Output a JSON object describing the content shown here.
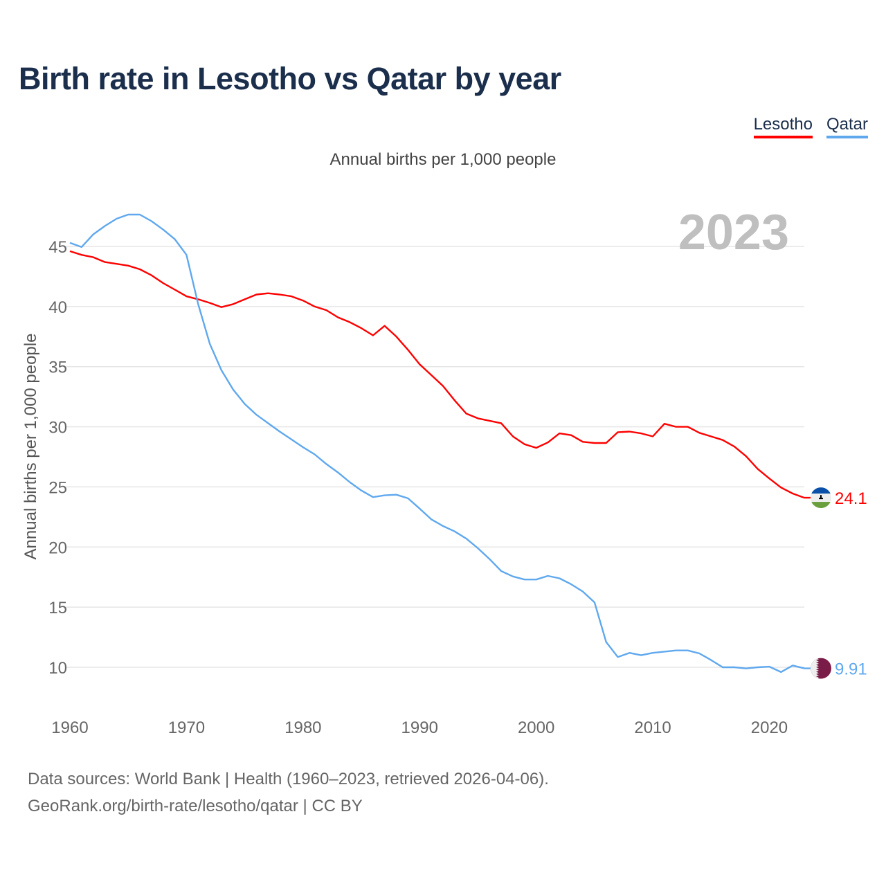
{
  "title": "Birth rate in Lesotho vs Qatar by year",
  "subtitle": "Annual births per 1,000 people",
  "footer": {
    "line1": "Data sources: World Bank | Health (1960–2023, retrieved 2026-04-06).",
    "line2": "GeoRank.org/birth-rate/lesotho/qatar | CC BY"
  },
  "chart_data": {
    "type": "line",
    "title": "Birth rate in Lesotho vs Qatar by year",
    "ylabel": "Annual births per 1,000 people",
    "xlabel": "",
    "year_label": "2023",
    "xlim": [
      1960,
      2023
    ],
    "ylim": [
      6.5,
      49
    ],
    "x_ticks": [
      1960,
      1970,
      1980,
      1990,
      2000,
      2010,
      2020
    ],
    "y_ticks": [
      10,
      15,
      20,
      25,
      30,
      35,
      40,
      45
    ],
    "grid": true,
    "legend_position": "top-right",
    "x_start": 1960,
    "series": [
      {
        "name": "Lesotho",
        "color": "#ff0000",
        "end_label": "24.1",
        "flag": "lesotho-flag",
        "values": [
          44.6,
          44.3,
          44.1,
          43.7,
          43.55,
          43.4,
          43.1,
          42.6,
          41.95,
          41.4,
          40.85,
          40.6,
          40.3,
          39.95,
          40.2,
          40.6,
          41.0,
          41.1,
          41.0,
          40.85,
          40.5,
          40.0,
          39.7,
          39.1,
          38.7,
          38.2,
          37.6,
          38.4,
          37.5,
          36.4,
          35.2,
          34.3,
          33.4,
          32.2,
          31.1,
          30.7,
          30.5,
          30.3,
          29.2,
          28.55,
          28.25,
          28.7,
          29.45,
          29.3,
          28.75,
          28.65,
          28.65,
          29.55,
          29.6,
          29.45,
          29.2,
          30.25,
          30.0,
          30.0,
          29.5,
          29.2,
          28.9,
          28.35,
          27.55,
          26.5,
          25.7,
          24.95,
          24.45,
          24.1
        ]
      },
      {
        "name": "Qatar",
        "color": "#5fa8ee",
        "end_label": "9.91",
        "flag": "qatar-flag",
        "values": [
          45.3,
          44.95,
          46.0,
          46.7,
          47.3,
          47.65,
          47.65,
          47.1,
          46.4,
          45.6,
          44.3,
          40.2,
          36.9,
          34.7,
          33.1,
          31.9,
          31.0,
          30.3,
          29.6,
          28.95,
          28.3,
          27.7,
          26.9,
          26.2,
          25.4,
          24.7,
          24.15,
          24.3,
          24.35,
          24.05,
          23.2,
          22.3,
          21.75,
          21.3,
          20.7,
          19.9,
          19.0,
          18.0,
          17.55,
          17.3,
          17.3,
          17.6,
          17.4,
          16.9,
          16.3,
          15.4,
          12.1,
          10.85,
          11.2,
          11.0,
          11.2,
          11.3,
          11.4,
          11.4,
          11.15,
          10.6,
          10.0,
          10.0,
          9.9,
          10.0,
          10.05,
          9.6,
          10.15,
          9.91
        ]
      }
    ]
  }
}
